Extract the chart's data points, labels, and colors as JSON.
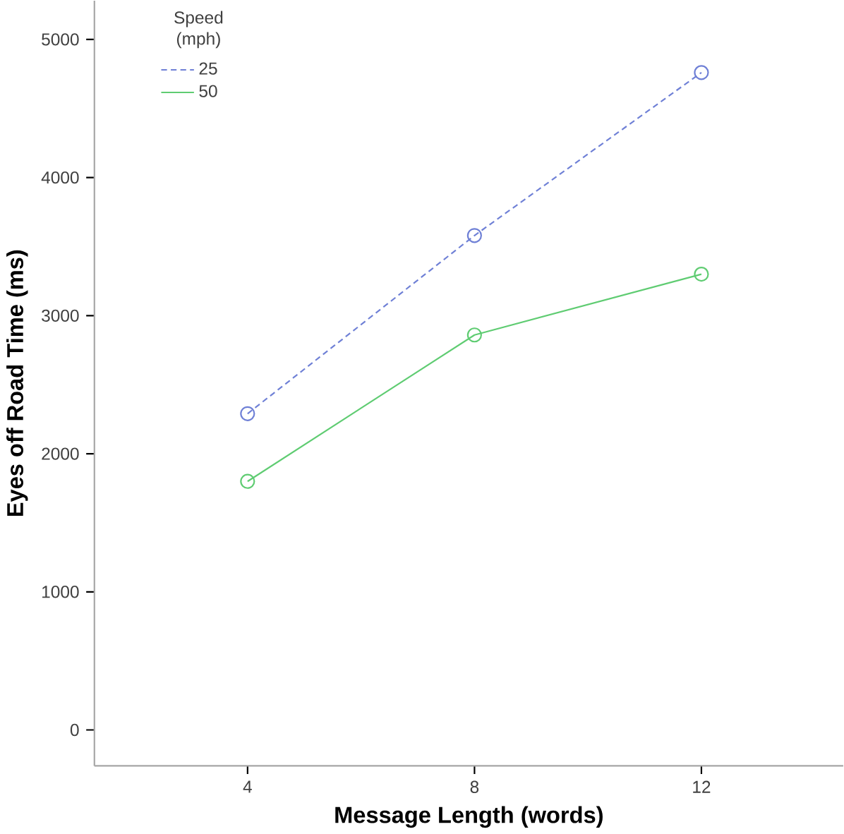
{
  "chart_data": {
    "type": "line",
    "xlabel": "Message Length (words)",
    "ylabel": "Eyes off Road Time (ms)",
    "legend_title": "Speed (mph)",
    "x": [
      4,
      8,
      12
    ],
    "xlim": [
      1.3,
      14.5
    ],
    "xticks": [
      4,
      8,
      12
    ],
    "ylim": [
      -260,
      5280
    ],
    "yticks": [
      0,
      1000,
      2000,
      3000,
      4000,
      5000
    ],
    "series": [
      {
        "name": "25",
        "color": "#6f80d6",
        "values": [
          2290,
          3580,
          4760
        ],
        "line_style": "dashed"
      },
      {
        "name": "50",
        "color": "#5fcc72",
        "values": [
          1800,
          2860,
          3300
        ],
        "line_style": "solid"
      }
    ],
    "marker": "circle",
    "legend": "top left",
    "grid": false
  }
}
